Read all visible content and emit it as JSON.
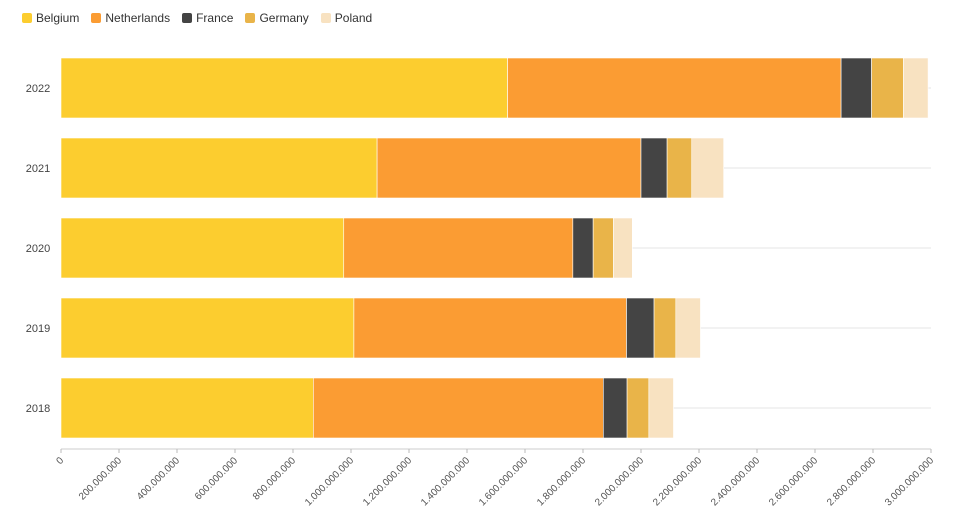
{
  "chart_data": {
    "type": "bar",
    "orientation": "horizontal",
    "stacked": true,
    "categories": [
      "2022",
      "2021",
      "2020",
      "2019",
      "2018"
    ],
    "series": [
      {
        "name": "Belgium",
        "color": "#fccd2f",
        "values": [
          1540000000,
          1090000000,
          975000000,
          1010000000,
          870000000
        ]
      },
      {
        "name": "Netherlands",
        "color": "#fb9c33",
        "values": [
          1150000000,
          910000000,
          790000000,
          940000000,
          1000000000
        ]
      },
      {
        "name": "France",
        "color": "#444444",
        "values": [
          105000000,
          90000000,
          70000000,
          95000000,
          82000000
        ]
      },
      {
        "name": "Germany",
        "color": "#e9b449",
        "values": [
          110000000,
          85000000,
          70000000,
          75000000,
          75000000
        ]
      },
      {
        "name": "Poland",
        "color": "#f8e2c1",
        "values": [
          85000000,
          110000000,
          65000000,
          85000000,
          85000000
        ]
      }
    ],
    "xlim": [
      0,
      3000000000
    ],
    "xticks": [
      "0",
      "200.000.000",
      "400.000.000",
      "600.000.000",
      "800.000.000",
      "1.000.000.000",
      "1.200.000.000",
      "1.400.000.000",
      "1.600.000.000",
      "1.800.000.000",
      "2.000.000.000",
      "2.200.000.000",
      "2.400.000.000",
      "2.600.000.000",
      "2.800.000.000",
      "3.000.000.000"
    ],
    "legend_position": "top-left",
    "grid": true,
    "title": "",
    "xlabel": "",
    "ylabel": ""
  }
}
